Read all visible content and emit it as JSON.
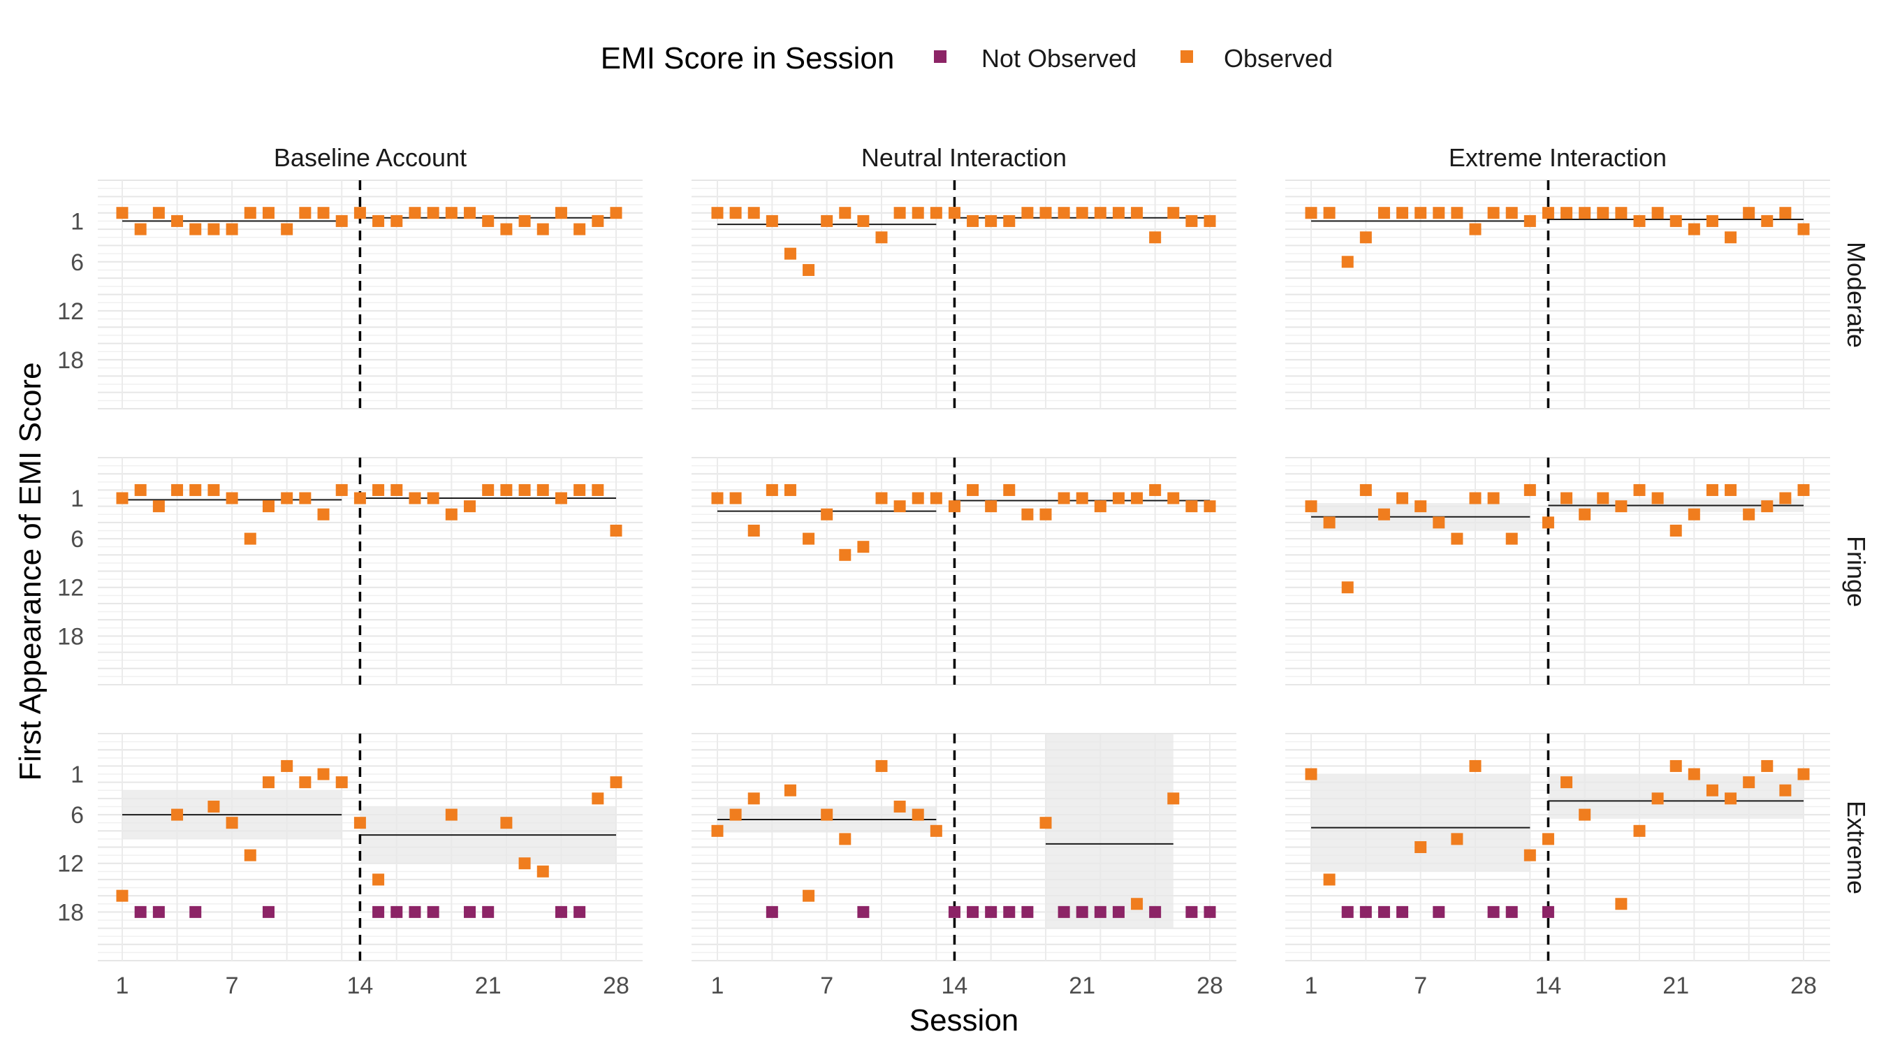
{
  "chart_data": {
    "type": "scatter",
    "xlabel": "Session",
    "ylabel": "First Appearance of EMI Score",
    "x_ticks": [
      1,
      7,
      14,
      21,
      28
    ],
    "y_ticks": [
      1,
      6,
      12,
      18
    ],
    "x_range": [
      1,
      28
    ],
    "y_range": [
      -4,
      24
    ],
    "y_reversed": true,
    "phase_change_session": 14,
    "grid": true,
    "legend": {
      "title": "EMI Score in Session",
      "position": "top",
      "items": [
        {
          "label": "Not Observed",
          "color": "#8c2466"
        },
        {
          "label": "Observed",
          "color": "#f07d1e"
        }
      ]
    },
    "columns": [
      "Baseline Account",
      "Neutral Interaction",
      "Extreme Interaction"
    ],
    "rows": [
      "Moderate",
      "Fringe",
      "Extreme"
    ],
    "panels": [
      {
        "row": "Moderate",
        "column": "Baseline Account",
        "observed": [
          [
            1,
            0
          ],
          [
            2,
            2
          ],
          [
            3,
            0
          ],
          [
            4,
            1
          ],
          [
            5,
            2
          ],
          [
            6,
            2
          ],
          [
            7,
            2
          ],
          [
            8,
            0
          ],
          [
            9,
            0
          ],
          [
            10,
            2
          ],
          [
            11,
            0
          ],
          [
            12,
            0
          ],
          [
            13,
            1
          ],
          [
            14,
            0
          ],
          [
            15,
            1
          ],
          [
            16,
            1
          ],
          [
            17,
            0
          ],
          [
            18,
            0
          ],
          [
            19,
            0
          ],
          [
            20,
            0
          ],
          [
            21,
            1
          ],
          [
            22,
            2
          ],
          [
            23,
            1
          ],
          [
            24,
            2
          ],
          [
            25,
            0
          ],
          [
            26,
            2
          ],
          [
            27,
            1
          ],
          [
            28,
            0
          ]
        ],
        "not_observed": [],
        "phase_means": [
          {
            "from": 1,
            "to": 13,
            "mean": 1,
            "band": [
              1,
              1
            ]
          },
          {
            "from": 14,
            "to": 28,
            "mean": 0.6,
            "band": [
              0.6,
              0.6
            ]
          }
        ]
      },
      {
        "row": "Moderate",
        "column": "Neutral Interaction",
        "observed": [
          [
            1,
            0
          ],
          [
            2,
            0
          ],
          [
            3,
            0
          ],
          [
            4,
            1
          ],
          [
            5,
            5
          ],
          [
            6,
            7
          ],
          [
            7,
            1
          ],
          [
            8,
            0
          ],
          [
            9,
            1
          ],
          [
            10,
            3
          ],
          [
            11,
            0
          ],
          [
            12,
            0
          ],
          [
            13,
            0
          ],
          [
            14,
            0
          ],
          [
            15,
            1
          ],
          [
            16,
            1
          ],
          [
            17,
            1
          ],
          [
            18,
            0
          ],
          [
            19,
            0
          ],
          [
            20,
            0
          ],
          [
            21,
            0
          ],
          [
            22,
            0
          ],
          [
            23,
            0
          ],
          [
            24,
            0
          ],
          [
            25,
            3
          ],
          [
            26,
            0
          ],
          [
            27,
            1
          ],
          [
            28,
            1
          ]
        ],
        "not_observed": [],
        "phase_means": [
          {
            "from": 1,
            "to": 13,
            "mean": 1.4,
            "band": [
              1.4,
              1.4
            ]
          },
          {
            "from": 14,
            "to": 28,
            "mean": 0.6,
            "band": [
              0.6,
              0.6
            ]
          }
        ]
      },
      {
        "row": "Moderate",
        "column": "Extreme Interaction",
        "observed": [
          [
            1,
            0
          ],
          [
            2,
            0
          ],
          [
            3,
            6
          ],
          [
            4,
            3
          ],
          [
            5,
            0
          ],
          [
            6,
            0
          ],
          [
            7,
            0
          ],
          [
            8,
            0
          ],
          [
            9,
            0
          ],
          [
            10,
            2
          ],
          [
            11,
            0
          ],
          [
            12,
            0
          ],
          [
            13,
            1
          ],
          [
            14,
            0
          ],
          [
            15,
            0
          ],
          [
            16,
            0
          ],
          [
            17,
            0
          ],
          [
            18,
            0
          ],
          [
            19,
            1
          ],
          [
            20,
            0
          ],
          [
            21,
            1
          ],
          [
            22,
            2
          ],
          [
            23,
            1
          ],
          [
            24,
            3
          ],
          [
            25,
            0
          ],
          [
            26,
            1
          ],
          [
            27,
            0
          ],
          [
            28,
            2
          ]
        ],
        "not_observed": [],
        "phase_means": [
          {
            "from": 1,
            "to": 13,
            "mean": 1,
            "band": [
              1,
              1
            ]
          },
          {
            "from": 14,
            "to": 28,
            "mean": 0.8,
            "band": [
              0.8,
              0.8
            ]
          }
        ]
      },
      {
        "row": "Fringe",
        "column": "Baseline Account",
        "observed": [
          [
            1,
            1
          ],
          [
            2,
            0
          ],
          [
            3,
            2
          ],
          [
            4,
            0
          ],
          [
            5,
            0
          ],
          [
            6,
            0
          ],
          [
            7,
            1
          ],
          [
            8,
            6
          ],
          [
            9,
            2
          ],
          [
            10,
            1
          ],
          [
            11,
            1
          ],
          [
            12,
            3
          ],
          [
            13,
            0
          ],
          [
            14,
            1
          ],
          [
            15,
            0
          ],
          [
            16,
            0
          ],
          [
            17,
            1
          ],
          [
            18,
            1
          ],
          [
            19,
            3
          ],
          [
            20,
            2
          ],
          [
            21,
            0
          ],
          [
            22,
            0
          ],
          [
            23,
            0
          ],
          [
            24,
            0
          ],
          [
            25,
            1
          ],
          [
            26,
            0
          ],
          [
            27,
            0
          ],
          [
            28,
            5
          ]
        ],
        "not_observed": [],
        "phase_means": [
          {
            "from": 1,
            "to": 13,
            "mean": 1.2,
            "band": [
              1.2,
              1.2
            ]
          },
          {
            "from": 14,
            "to": 28,
            "mean": 1,
            "band": [
              1,
              1
            ]
          }
        ]
      },
      {
        "row": "Fringe",
        "column": "Neutral Interaction",
        "observed": [
          [
            1,
            1
          ],
          [
            2,
            1
          ],
          [
            3,
            5
          ],
          [
            4,
            0
          ],
          [
            5,
            0
          ],
          [
            6,
            6
          ],
          [
            7,
            3
          ],
          [
            8,
            8
          ],
          [
            9,
            7
          ],
          [
            10,
            1
          ],
          [
            11,
            2
          ],
          [
            12,
            1
          ],
          [
            13,
            1
          ],
          [
            14,
            2
          ],
          [
            15,
            0
          ],
          [
            16,
            2
          ],
          [
            17,
            0
          ],
          [
            18,
            3
          ],
          [
            19,
            3
          ],
          [
            20,
            1
          ],
          [
            21,
            1
          ],
          [
            22,
            2
          ],
          [
            23,
            1
          ],
          [
            24,
            1
          ],
          [
            25,
            0
          ],
          [
            26,
            1
          ],
          [
            27,
            2
          ],
          [
            28,
            2
          ]
        ],
        "not_observed": [],
        "phase_means": [
          {
            "from": 1,
            "to": 13,
            "mean": 2.6,
            "band": [
              2.6,
              2.6
            ]
          },
          {
            "from": 14,
            "to": 28,
            "mean": 1.3,
            "band": [
              1.3,
              1.3
            ]
          }
        ]
      },
      {
        "row": "Fringe",
        "column": "Extreme Interaction",
        "observed": [
          [
            1,
            2
          ],
          [
            2,
            4
          ],
          [
            3,
            12
          ],
          [
            4,
            0
          ],
          [
            5,
            3
          ],
          [
            6,
            1
          ],
          [
            7,
            2
          ],
          [
            8,
            4
          ],
          [
            9,
            6
          ],
          [
            10,
            1
          ],
          [
            11,
            1
          ],
          [
            12,
            6
          ],
          [
            13,
            0
          ],
          [
            14,
            4
          ],
          [
            15,
            1
          ],
          [
            16,
            3
          ],
          [
            17,
            1
          ],
          [
            18,
            2
          ],
          [
            19,
            0
          ],
          [
            20,
            1
          ],
          [
            21,
            5
          ],
          [
            22,
            3
          ],
          [
            23,
            0
          ],
          [
            24,
            0
          ],
          [
            25,
            3
          ],
          [
            26,
            2
          ],
          [
            27,
            1
          ],
          [
            28,
            0
          ]
        ],
        "not_observed": [],
        "phase_means": [
          {
            "from": 1,
            "to": 13,
            "mean": 3.3,
            "band": [
              1.6,
              5
            ]
          },
          {
            "from": 14,
            "to": 28,
            "mean": 1.9,
            "band": [
              1.1,
              2.7
            ]
          }
        ]
      },
      {
        "row": "Extreme",
        "column": "Baseline Account",
        "observed": [
          [
            1,
            16
          ],
          [
            4,
            6
          ],
          [
            6,
            5
          ],
          [
            7,
            7
          ],
          [
            8,
            11
          ],
          [
            9,
            2
          ],
          [
            10,
            0
          ],
          [
            11,
            2
          ],
          [
            12,
            1
          ],
          [
            13,
            2
          ],
          [
            14,
            7
          ],
          [
            15,
            14
          ],
          [
            19,
            6
          ],
          [
            22,
            7
          ],
          [
            23,
            12
          ],
          [
            24,
            13
          ],
          [
            27,
            4
          ],
          [
            28,
            2
          ]
        ],
        "not_observed": [
          [
            2,
            18
          ],
          [
            3,
            18
          ],
          [
            5,
            18
          ],
          [
            9,
            18
          ],
          [
            15,
            18
          ],
          [
            16,
            18
          ],
          [
            17,
            18
          ],
          [
            18,
            18
          ],
          [
            20,
            18
          ],
          [
            21,
            18
          ],
          [
            25,
            18
          ],
          [
            26,
            18
          ]
        ],
        "phase_means": [
          {
            "from": 1,
            "to": 13,
            "mean": 6,
            "band": [
              3,
              9
            ]
          },
          {
            "from": 14,
            "to": 28,
            "mean": 8.5,
            "band": [
              5,
              12
            ]
          }
        ]
      },
      {
        "row": "Extreme",
        "column": "Neutral Interaction",
        "observed": [
          [
            1,
            8
          ],
          [
            2,
            6
          ],
          [
            3,
            4
          ],
          [
            5,
            3
          ],
          [
            6,
            16
          ],
          [
            7,
            6
          ],
          [
            8,
            9
          ],
          [
            10,
            0
          ],
          [
            11,
            5
          ],
          [
            12,
            6
          ],
          [
            13,
            8
          ],
          [
            19,
            7
          ],
          [
            24,
            17
          ],
          [
            26,
            4
          ]
        ],
        "not_observed": [
          [
            4,
            18
          ],
          [
            9,
            18
          ],
          [
            14,
            18
          ],
          [
            15,
            18
          ],
          [
            16,
            18
          ],
          [
            17,
            18
          ],
          [
            18,
            18
          ],
          [
            20,
            18
          ],
          [
            21,
            18
          ],
          [
            22,
            18
          ],
          [
            23,
            18
          ],
          [
            25,
            18
          ],
          [
            27,
            18
          ],
          [
            28,
            18
          ]
        ],
        "phase_means": [
          {
            "from": 1,
            "to": 13,
            "mean": 6.6,
            "band": [
              5,
              8.2
            ]
          },
          {
            "from": 19,
            "to": 26,
            "mean": 9.6,
            "band": [
              -4,
              20
            ]
          }
        ]
      },
      {
        "row": "Extreme",
        "column": "Extreme Interaction",
        "observed": [
          [
            1,
            1
          ],
          [
            2,
            14
          ],
          [
            7,
            10
          ],
          [
            9,
            9
          ],
          [
            10,
            0
          ],
          [
            13,
            11
          ],
          [
            14,
            9
          ],
          [
            15,
            2
          ],
          [
            16,
            6
          ],
          [
            18,
            17
          ],
          [
            19,
            8
          ],
          [
            20,
            4
          ],
          [
            21,
            0
          ],
          [
            22,
            1
          ],
          [
            23,
            3
          ],
          [
            24,
            4
          ],
          [
            25,
            2
          ],
          [
            26,
            0
          ],
          [
            27,
            3
          ],
          [
            28,
            1
          ]
        ],
        "not_observed": [
          [
            3,
            18
          ],
          [
            4,
            18
          ],
          [
            5,
            18
          ],
          [
            6,
            18
          ],
          [
            8,
            18
          ],
          [
            11,
            18
          ],
          [
            12,
            18
          ],
          [
            14,
            18
          ]
        ],
        "phase_means": [
          {
            "from": 1,
            "to": 13,
            "mean": 7.6,
            "band": [
              1,
              13
            ]
          },
          {
            "from": 14,
            "to": 28,
            "mean": 4.3,
            "band": [
              1,
              6.5
            ]
          }
        ]
      }
    ]
  }
}
